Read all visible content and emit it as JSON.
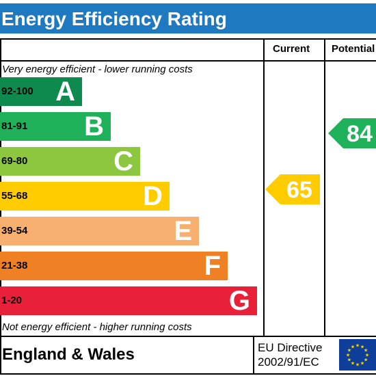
{
  "title": "Energy Efficiency Rating",
  "columns": {
    "current": "Current",
    "potential": "Potential"
  },
  "top_note": "Very energy efficient - lower running costs",
  "bottom_note": "Not energy efficient - higher running costs",
  "bands": [
    {
      "range": "92-100",
      "letter": "A",
      "color": "#0e8a4f"
    },
    {
      "range": "81-91",
      "letter": "B",
      "color": "#1fb25a"
    },
    {
      "range": "69-80",
      "letter": "C",
      "color": "#8dc63f"
    },
    {
      "range": "55-68",
      "letter": "D",
      "color": "#ffcc00"
    },
    {
      "range": "39-54",
      "letter": "E",
      "color": "#f8b070"
    },
    {
      "range": "21-38",
      "letter": "F",
      "color": "#f08024"
    },
    {
      "range": "1-20",
      "letter": "G",
      "color": "#e8203a"
    }
  ],
  "current_rating": {
    "value": "65",
    "color": "#ffcc00"
  },
  "potential_rating": {
    "value": "84",
    "color": "#1fb25a"
  },
  "region": "England & Wales",
  "directive": {
    "line1": "EU Directive",
    "line2": "2002/91/EC"
  },
  "colors": {
    "header": "#1e79c0",
    "flag": "#0e3e9a",
    "stars": "#ffdd00"
  }
}
